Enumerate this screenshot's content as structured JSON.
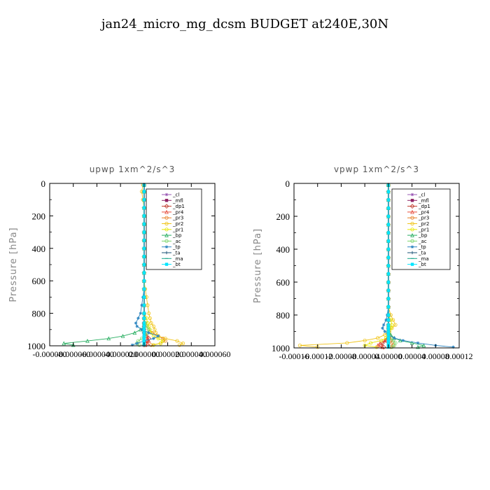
{
  "title": "jan24_micro_mg_dcsm  BUDGET at240E,30N",
  "chart_data": [
    {
      "type": "line",
      "title": "upwp   1xm^2/s^3",
      "ylabel": "Pressure [hPa]",
      "ylim": [
        1000,
        0
      ],
      "yticks": [
        "0",
        "200",
        "400",
        "600",
        "800",
        "1000"
      ],
      "xlim": [
        -8e-05,
        6e-05
      ],
      "xticks": [
        "-0.00008",
        "-0.00006",
        "-0.00004",
        "-0.00002",
        "0",
        "0.00002",
        "0.00004",
        "0.00006"
      ],
      "xtick_labels": [
        "-0.000080",
        "-0.000060",
        "-0.000040",
        "-0.000020",
        "0.000000",
        "0.000020",
        "0.000040",
        "0.000060"
      ],
      "pressure": [
        10,
        50,
        100,
        150,
        200,
        250,
        300,
        350,
        400,
        450,
        500,
        550,
        600,
        650,
        700,
        750,
        800,
        830,
        860,
        880,
        900,
        920,
        940,
        955,
        970,
        985,
        995
      ],
      "series": [
        {
          "name": "_cl",
          "color": "#9b59b6",
          "values": [
            0,
            0,
            0,
            0,
            0,
            0,
            0,
            0,
            0,
            0,
            0,
            0,
            0,
            0,
            0,
            0,
            0,
            0,
            0,
            0,
            0,
            0,
            0,
            0,
            0,
            0,
            0
          ]
        },
        {
          "name": "_mfl",
          "color": "#8e2063",
          "values": [
            0,
            0,
            0,
            0,
            0,
            0,
            0,
            0,
            0,
            0,
            0,
            0,
            0,
            0,
            0,
            0,
            0,
            0,
            0,
            0,
            0,
            0,
            0,
            0,
            0,
            0,
            0
          ]
        },
        {
          "name": "_dp1",
          "color": "#c0392b",
          "values": [
            0,
            0,
            0,
            0,
            0,
            0,
            0,
            0,
            0,
            0,
            0,
            0,
            0,
            0,
            0,
            0,
            0,
            0,
            0,
            0,
            0,
            0,
            2e-06,
            4e-06,
            3e-06,
            1e-06,
            0
          ]
        },
        {
          "name": "_pr4",
          "color": "#e74c3c",
          "values": [
            0,
            0,
            0,
            0,
            0,
            0,
            0,
            0,
            0,
            0,
            0,
            0,
            0,
            0,
            0,
            0,
            0,
            0,
            0,
            0,
            0,
            1e-06,
            2e-06,
            3e-06,
            4e-06,
            3e-06,
            1e-06
          ]
        },
        {
          "name": "_pr3",
          "color": "#e67e22",
          "values": [
            0,
            0,
            0,
            0,
            0,
            0,
            0,
            0,
            0,
            0,
            0,
            0,
            0,
            0,
            0,
            0,
            0,
            0,
            1e-06,
            2e-06,
            4e-06,
            7e-06,
            1.2e-05,
            1.6e-05,
            1.8e-05,
            1.4e-05,
            6e-06
          ]
        },
        {
          "name": "_pr2",
          "color": "#f0c419",
          "values": [
            -1e-06,
            -2e-06,
            -1e-06,
            0,
            0,
            0,
            0,
            0,
            0,
            0,
            0,
            0,
            0,
            1e-06,
            2e-06,
            3e-06,
            4e-06,
            5e-06,
            6e-06,
            8e-06,
            9e-06,
            1e-05,
            1.2e-05,
            1.8e-05,
            2.8e-05,
            3.3e-05,
            3e-05
          ]
        },
        {
          "name": "_pr1",
          "color": "#e6e600",
          "values": [
            0,
            0,
            0,
            0,
            0,
            0,
            0,
            0,
            0,
            0,
            0,
            0,
            0,
            0,
            0,
            0,
            0,
            2e-06,
            3e-06,
            4e-06,
            5e-06,
            6e-06,
            8e-06,
            1.2e-05,
            1.6e-05,
            1.4e-05,
            8e-06
          ]
        },
        {
          "name": "_bp",
          "color": "#27ae60",
          "values": [
            0,
            0,
            0,
            0,
            0,
            0,
            0,
            0,
            0,
            0,
            0,
            0,
            0,
            0,
            0,
            0,
            0,
            0,
            0,
            0,
            -3e-06,
            -8e-06,
            -1.8e-05,
            -3e-05,
            -4.8e-05,
            -6.8e-05,
            -6e-05
          ]
        },
        {
          "name": "_ac",
          "color": "#7bd66b",
          "values": [
            0,
            0,
            0,
            0,
            0,
            0,
            0,
            0,
            0,
            0,
            0,
            0,
            0,
            0,
            0,
            0,
            0,
            0,
            1e-06,
            2e-06,
            4e-06,
            3e-06,
            1e-06,
            -2e-06,
            -5e-06,
            -6e-06,
            -4e-06
          ]
        },
        {
          "name": "_tp",
          "color": "#2e86c1",
          "values": [
            0,
            0,
            0,
            0,
            0,
            0,
            0,
            0,
            0,
            0,
            0,
            0,
            0,
            0,
            -1e-06,
            -2e-06,
            -3e-06,
            -5e-06,
            -7e-06,
            -6e-06,
            -2e-06,
            4e-06,
            1.2e-05,
            8e-06,
            0,
            -6e-06,
            -1e-05
          ]
        },
        {
          "name": "_ta",
          "color": "#1a5276",
          "values": [
            0,
            0,
            0,
            0,
            0,
            0,
            0,
            0,
            0,
            0,
            0,
            0,
            0,
            0,
            0,
            0,
            0,
            0,
            0,
            0,
            0,
            0,
            0,
            0,
            0,
            0,
            0
          ]
        },
        {
          "name": "_ma",
          "color": "#17a589",
          "values": [
            0,
            0,
            0,
            0,
            0,
            0,
            0,
            0,
            0,
            0,
            0,
            0,
            0,
            0,
            0,
            0,
            0,
            0,
            0,
            0,
            0,
            0,
            0,
            0,
            0,
            0,
            0
          ]
        },
        {
          "name": "_bt",
          "color": "#00e5ff",
          "values": [
            0,
            0,
            0,
            0,
            0,
            0,
            0,
            0,
            0,
            0,
            0,
            0,
            0,
            0,
            0,
            0,
            0,
            0,
            0,
            0,
            0,
            0,
            0,
            0,
            0,
            0,
            0
          ]
        }
      ]
    },
    {
      "type": "line",
      "title": "vpwp   1xm^2/s^3",
      "ylabel": "Pressure [hPa]",
      "ylim": [
        1000,
        0
      ],
      "yticks": [
        "0",
        "200",
        "400",
        "600",
        "800",
        "1000"
      ],
      "xlim": [
        -0.00016,
        0.00012
      ],
      "xticks": [
        "-0.00016",
        "-0.00012",
        "-0.00008",
        "-0.00004",
        "0",
        "0.00004",
        "0.00008",
        "0.00012"
      ],
      "xtick_labels": [
        "-0.00016",
        "-0.00012",
        "-0.00008",
        "-0.00004",
        "0.00000",
        "0.00004",
        "0.00008",
        "0.00012"
      ],
      "pressure": [
        10,
        50,
        100,
        150,
        200,
        250,
        300,
        350,
        400,
        450,
        500,
        550,
        600,
        650,
        700,
        750,
        800,
        830,
        860,
        880,
        900,
        920,
        940,
        955,
        970,
        985,
        995
      ],
      "series": [
        {
          "name": "_cl",
          "color": "#9b59b6",
          "values": [
            0,
            0,
            0,
            0,
            0,
            0,
            0,
            0,
            0,
            0,
            0,
            0,
            0,
            0,
            0,
            0,
            0,
            0,
            0,
            0,
            0,
            0,
            0,
            0,
            0,
            0,
            0
          ]
        },
        {
          "name": "_mfl",
          "color": "#8e2063",
          "values": [
            0,
            0,
            0,
            0,
            0,
            0,
            0,
            0,
            0,
            0,
            0,
            0,
            0,
            0,
            0,
            0,
            0,
            0,
            0,
            0,
            0,
            0,
            0,
            0,
            0,
            0,
            0
          ]
        },
        {
          "name": "_dp1",
          "color": "#c0392b",
          "values": [
            0,
            0,
            0,
            0,
            0,
            0,
            0,
            0,
            0,
            0,
            0,
            0,
            0,
            0,
            0,
            0,
            0,
            0,
            0,
            0,
            0,
            0,
            0,
            -4e-06,
            -1e-05,
            -1.2e-05,
            -8e-06
          ]
        },
        {
          "name": "_pr4",
          "color": "#e74c3c",
          "values": [
            0,
            0,
            0,
            0,
            0,
            0,
            0,
            0,
            0,
            0,
            0,
            0,
            0,
            0,
            0,
            0,
            0,
            0,
            0,
            0,
            0,
            0,
            0,
            -6e-06,
            -1.4e-05,
            -1.8e-05,
            -1e-05
          ]
        },
        {
          "name": "_pr3",
          "color": "#e67e22",
          "values": [
            0,
            0,
            0,
            0,
            0,
            0,
            0,
            0,
            0,
            0,
            0,
            0,
            0,
            0,
            0,
            0,
            0,
            0,
            0,
            0,
            0,
            0,
            2e-06,
            4e-06,
            6e-06,
            8e-06,
            4e-06
          ]
        },
        {
          "name": "_pr2",
          "color": "#f0c419",
          "values": [
            0,
            0,
            0,
            0,
            0,
            0,
            0,
            0,
            0,
            0,
            0,
            0,
            0,
            0,
            0,
            0,
            4e-06,
            8e-06,
            1.2e-05,
            6e-06,
            0,
            -6e-06,
            -1.8e-05,
            -4e-05,
            -7e-05,
            -0.00015,
            -0.00012
          ]
        },
        {
          "name": "_pr1",
          "color": "#e6e600",
          "values": [
            0,
            0,
            0,
            0,
            0,
            0,
            0,
            0,
            0,
            0,
            0,
            0,
            0,
            0,
            0,
            0,
            0,
            4e-06,
            6e-06,
            4e-06,
            2e-06,
            0,
            -4e-06,
            -1.2e-05,
            -3e-05,
            -4e-05,
            -2e-05
          ]
        },
        {
          "name": "_bp",
          "color": "#27ae60",
          "values": [
            0,
            0,
            0,
            0,
            0,
            0,
            0,
            0,
            0,
            0,
            0,
            0,
            0,
            0,
            0,
            0,
            0,
            0,
            0,
            0,
            0,
            4e-06,
            1e-05,
            2e-05,
            4e-05,
            6e-05,
            5e-05
          ]
        },
        {
          "name": "_ac",
          "color": "#7bd66b",
          "values": [
            0,
            0,
            0,
            0,
            0,
            0,
            0,
            0,
            0,
            0,
            0,
            0,
            0,
            0,
            0,
            0,
            0,
            0,
            0,
            0,
            0,
            2e-06,
            4e-06,
            8e-06,
            1.2e-05,
            1e-05,
            6e-06
          ]
        },
        {
          "name": "_tp",
          "color": "#2e86c1",
          "values": [
            0,
            0,
            0,
            0,
            0,
            0,
            0,
            0,
            0,
            0,
            0,
            0,
            0,
            0,
            0,
            0,
            -2e-06,
            -4e-06,
            -8e-06,
            -1e-05,
            -6e-06,
            0,
            1e-05,
            2.5e-05,
            5e-05,
            8e-05,
            0.00011
          ]
        },
        {
          "name": "_ta",
          "color": "#1a5276",
          "values": [
            0,
            0,
            0,
            0,
            0,
            0,
            0,
            0,
            0,
            0,
            0,
            0,
            0,
            0,
            0,
            0,
            0,
            0,
            0,
            0,
            0,
            0,
            0,
            0,
            0,
            0,
            0
          ]
        },
        {
          "name": "_ma",
          "color": "#17a589",
          "values": [
            0,
            0,
            0,
            0,
            0,
            0,
            0,
            0,
            0,
            0,
            0,
            0,
            0,
            0,
            0,
            0,
            0,
            0,
            0,
            0,
            0,
            0,
            0,
            0,
            0,
            0,
            0
          ]
        },
        {
          "name": "_bt",
          "color": "#00e5ff",
          "values": [
            0,
            0,
            0,
            0,
            0,
            0,
            0,
            0,
            0,
            0,
            0,
            0,
            0,
            0,
            0,
            0,
            0,
            0,
            0,
            0,
            0,
            0,
            0,
            0,
            0,
            0,
            0
          ]
        }
      ]
    }
  ]
}
